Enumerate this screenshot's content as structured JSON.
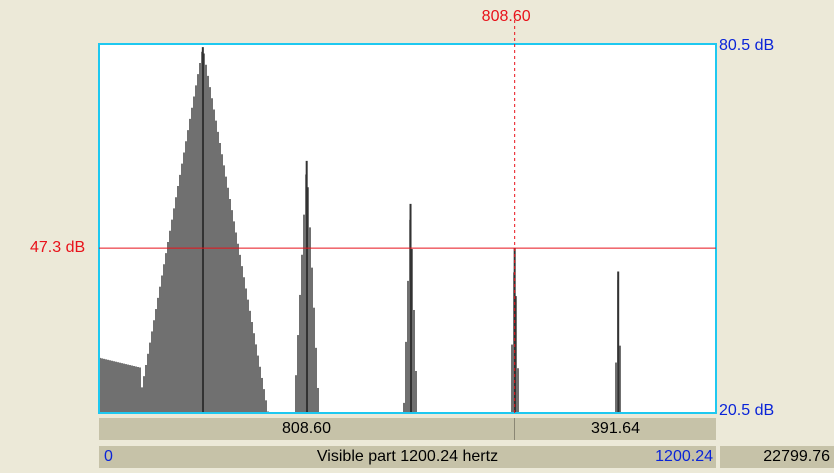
{
  "cursor": {
    "frequency_label": "808.60",
    "db_label": "47.3 dB",
    "frequency_hz": 808.6,
    "db_value": 47.3
  },
  "axis": {
    "db_top": "80.5 dB",
    "db_bottom": "20.5 dB",
    "db_max": 80.5,
    "db_min": 20.5,
    "freq_min": 0,
    "freq_max": 1200.24
  },
  "selection_bar": {
    "left_value": "808.60",
    "right_value": "391.64"
  },
  "visible_bar": {
    "start": "0",
    "label": "Visible part 1200.24 hertz",
    "end": "1200.24",
    "total": "22799.76"
  },
  "chart_data": {
    "type": "line",
    "title": "",
    "xlabel": "",
    "ylabel": "",
    "xlim": [
      0,
      1200.24
    ],
    "ylim": [
      20.5,
      80.5
    ],
    "peaks": [
      {
        "freq": 202,
        "db": 80.0
      },
      {
        "freq": 404,
        "db": 61.5
      },
      {
        "freq": 606,
        "db": 54.5
      },
      {
        "freq": 808.6,
        "db": 47.3
      },
      {
        "freq": 1010,
        "db": 43.5
      }
    ],
    "grid": false
  },
  "colors": {
    "plot_frame": "#1EC8F0",
    "cursor": "#E8121A",
    "spectrum": "#333333",
    "axis_text": "#0A24D8",
    "background": "#ECE9D8"
  }
}
